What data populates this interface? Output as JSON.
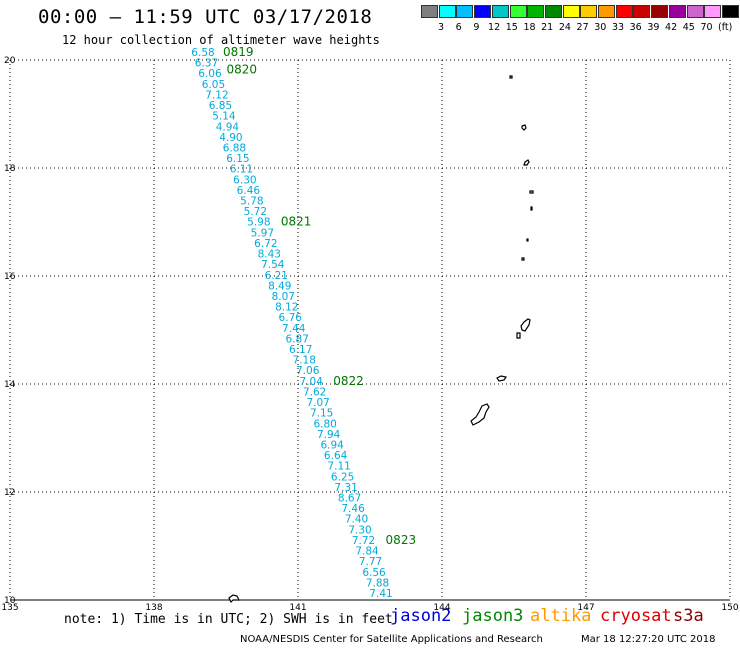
{
  "title": "00:00 – 11:59 UTC 03/17/2018",
  "subtitle": "12 hour collection of altimeter wave heights",
  "legend": {
    "colors": [
      "#7f7f7f",
      "#00ffff",
      "#00bfff",
      "#0000ff",
      "#00c8c8",
      "#33ff33",
      "#00b400",
      "#008800",
      "#ffff00",
      "#ffcc00",
      "#ff9900",
      "#ff0000",
      "#cc0000",
      "#990000",
      "#990099",
      "#cc66cc",
      "#ff99ff",
      "#000000"
    ],
    "labels": [
      "3",
      "6",
      "9",
      "12",
      "15",
      "18",
      "21",
      "24",
      "27",
      "30",
      "33",
      "36",
      "39",
      "42",
      "45",
      "70"
    ],
    "unit": "(ft)"
  },
  "axes": {
    "lat_labels": [
      "20",
      "18",
      "16",
      "14",
      "12",
      "10"
    ],
    "lon_labels": [
      "135",
      "138",
      "141",
      "144",
      "147",
      "150"
    ]
  },
  "track": {
    "color": "#00aadd",
    "values": [
      "6.58",
      "6.37",
      "6.06",
      "6.05",
      "7.12",
      "6.85",
      "5.14",
      "4.94",
      "4.90",
      "6.88",
      "6.15",
      "6.11",
      "6.30",
      "6.46",
      "5.78",
      "5.72",
      "5.98",
      "5.97",
      "6.72",
      "8.43",
      "7.54",
      "6.21",
      "8.49",
      "8.07",
      "8.12",
      "6.76",
      "7.44",
      "6.87",
      "6.17",
      "7.18",
      "7.06",
      "7.04",
      "7.62",
      "7.07",
      "7.15",
      "6.80",
      "7.94",
      "6.94",
      "6.64",
      "7.11",
      "6.25",
      "7.31",
      "8.67",
      "7.46",
      "7.40",
      "7.30",
      "7.72",
      "7.84",
      "7.77",
      "6.56",
      "7.88",
      "7.41"
    ],
    "time_labels": [
      "0819",
      "0820",
      "0821",
      "0822",
      "0823"
    ],
    "time_color": "#007700"
  },
  "footer": {
    "note": "note: 1) Time is in UTC; 2) SWH is in feet",
    "satellites": [
      {
        "name": "jason2",
        "color": "#0000dd"
      },
      {
        "name": "jason3",
        "color": "#008800"
      },
      {
        "name": "altika",
        "color": "#ff9900"
      },
      {
        "name": "cryosat",
        "color": "#dd0000"
      },
      {
        "name": "s3a",
        "color": "#880000"
      }
    ],
    "credit": "NOAA/NESDIS Center for Satellite Applications and Research",
    "timestamp": "Mar 18 12:27:20 UTC 2018"
  }
}
